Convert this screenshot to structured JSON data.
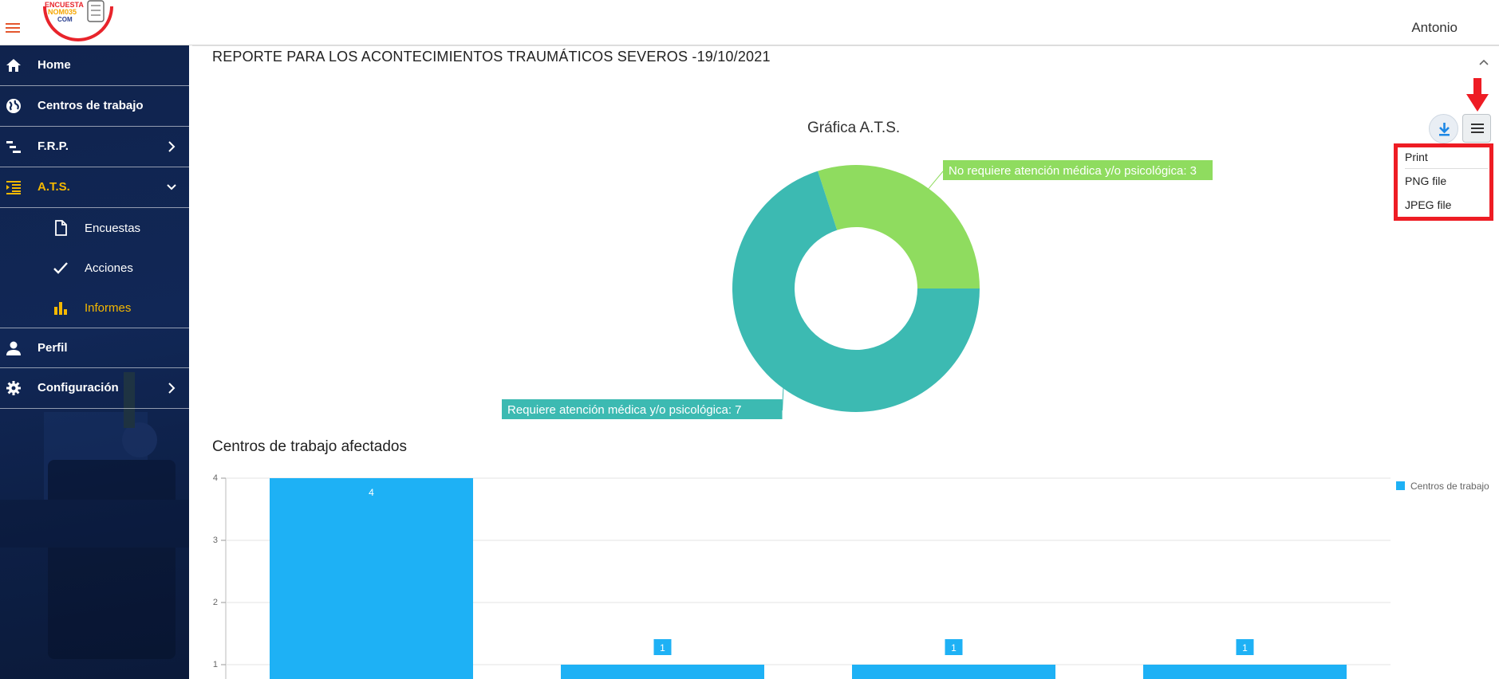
{
  "header": {
    "user_name": "Antonio",
    "logo_alt": "Encuesta NOM035 COM",
    "logo_lines": [
      "ENCUESTA",
      "NOM035",
      "COM"
    ],
    "menu_icon": "hamburger-icon"
  },
  "sidebar": {
    "items": [
      {
        "label": "Home",
        "icon": "home-icon"
      },
      {
        "label": "Centros de trabajo",
        "icon": "globe-icon"
      },
      {
        "label": "F.R.P.",
        "icon": "list-tree-icon",
        "chevron": "chevron-right-icon"
      },
      {
        "label": "A.T.S.",
        "icon": "indent-list-icon",
        "chevron": "chevron-down-icon",
        "active": true
      },
      {
        "label": "Perfil",
        "icon": "person-icon"
      },
      {
        "label": "Configuración",
        "icon": "gear-icon",
        "chevron": "chevron-right-icon"
      }
    ],
    "subitems": [
      {
        "label": "Encuestas",
        "icon": "document-icon"
      },
      {
        "label": "Acciones",
        "icon": "check-icon"
      },
      {
        "label": "Informes",
        "icon": "bar-chart-icon",
        "active": true
      }
    ],
    "active_color": "#f5b800"
  },
  "report": {
    "title": "REPORTE PARA LOS ACONTECIMIENTOS TRAUMÁTICOS SEVEROS -19/10/2021"
  },
  "chart_tools": {
    "download_icon": "download-icon",
    "menu_icon": "menu-icon",
    "export_options": [
      "Print",
      "PNG file",
      "JPEG file"
    ]
  },
  "chart_data": [
    {
      "type": "pie",
      "title": "Gráfica A.T.S.",
      "donut": true,
      "slices": [
        {
          "label": "No requiere atención médica y/o psicológica",
          "value": 3,
          "color": "#8fdc5f"
        },
        {
          "label": "Requiere atención médica y/o psicológica",
          "value": 7,
          "color": "#3cbab2"
        }
      ],
      "data_labels": [
        "No requiere atención médica y/o psicológica: 3",
        "Requiere atención médica y/o psicológica: 7"
      ]
    },
    {
      "type": "bar",
      "title": "Centros de trabajo afectados",
      "categories": [
        "",
        "",
        "",
        ""
      ],
      "series": [
        {
          "name": "Centros de trabajo",
          "values": [
            4,
            1,
            1,
            1
          ],
          "color": "#1eb1f5"
        }
      ],
      "ylim": [
        0,
        4
      ],
      "yticks": [
        1,
        2,
        3,
        4
      ],
      "grid": true,
      "legend": "top-right"
    }
  ]
}
